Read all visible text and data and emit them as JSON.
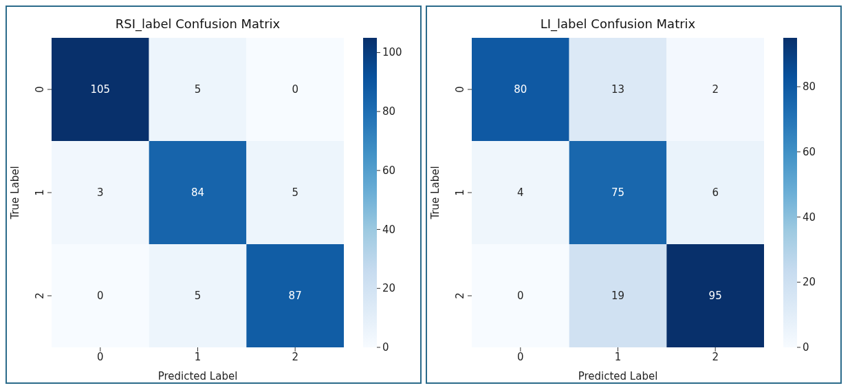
{
  "chart_data": [
    {
      "type": "heatmap",
      "title": "RSI_label Confusion Matrix",
      "xlabel": "Predicted Label",
      "ylabel": "True Label",
      "categories": [
        "0",
        "1",
        "2"
      ],
      "y_categories": [
        "0",
        "1",
        "2"
      ],
      "cells": [
        [
          105,
          5,
          0
        ],
        [
          3,
          84,
          5
        ],
        [
          0,
          5,
          87
        ]
      ],
      "clim": [
        0,
        105
      ],
      "cticks": [
        0,
        20,
        40,
        60,
        80,
        100
      ],
      "data_labels": true
    },
    {
      "type": "heatmap",
      "title": "LI_label Confusion Matrix",
      "xlabel": "Predicted Label",
      "ylabel": "True Label",
      "categories": [
        "0",
        "1",
        "2"
      ],
      "y_categories": [
        "0",
        "1",
        "2"
      ],
      "cells": [
        [
          80,
          13,
          2
        ],
        [
          4,
          75,
          6
        ],
        [
          0,
          19,
          95
        ]
      ],
      "clim": [
        0,
        95
      ],
      "cticks": [
        0,
        20,
        40,
        60,
        80
      ],
      "data_labels": true
    }
  ]
}
